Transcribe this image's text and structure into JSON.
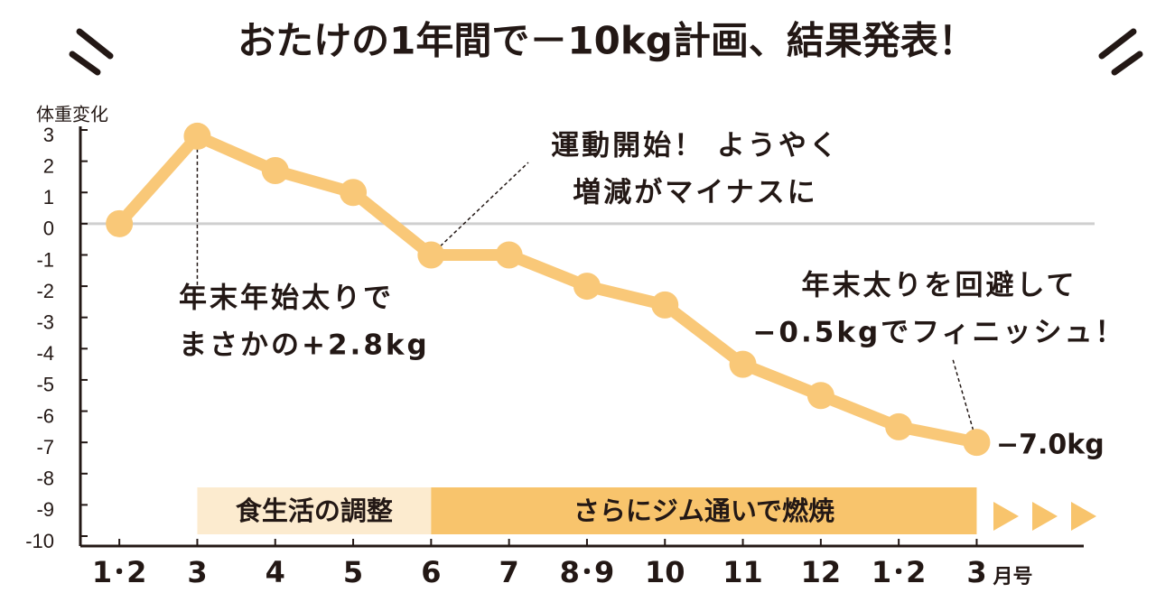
{
  "chart_data": {
    "type": "line",
    "title": "おたけの1年間で－10kg計画、結果発表！",
    "y_label": "体重変化",
    "x_unit": "月号",
    "categories": [
      "1･2",
      "3",
      "4",
      "5",
      "6",
      "7",
      "8･9",
      "10",
      "11",
      "12",
      "1･2",
      "3"
    ],
    "values": [
      0,
      2.8,
      1.7,
      1.0,
      -1.0,
      -1.0,
      -2.0,
      -2.6,
      -4.5,
      -5.5,
      -6.5,
      -7.0
    ],
    "color": "#f9c878",
    "ylim": [
      -10,
      3
    ],
    "yticks": [
      3,
      2,
      1,
      0,
      -1,
      -2,
      -3,
      -4,
      -5,
      -6,
      -7,
      -8,
      -9,
      -10
    ],
    "end_label": "−7.0kg",
    "annotations": [
      {
        "lines": [
          "年末年始太りで",
          "まさかの+2.8kg"
        ],
        "index": 1
      },
      {
        "lines": [
          "運動開始！ ようやく",
          "増減がマイナスに"
        ],
        "index": 4
      },
      {
        "lines": [
          "年末太りを回避して",
          "−0.5kgでフィニッシュ！"
        ],
        "index": 11
      }
    ],
    "phases": [
      {
        "label": "食生活の調整",
        "from": 1,
        "to": 4,
        "color": "#fcebcf"
      },
      {
        "label": "さらにジム通いで燃焼",
        "from": 4,
        "to": 11,
        "color": "#f8c46c"
      }
    ]
  }
}
